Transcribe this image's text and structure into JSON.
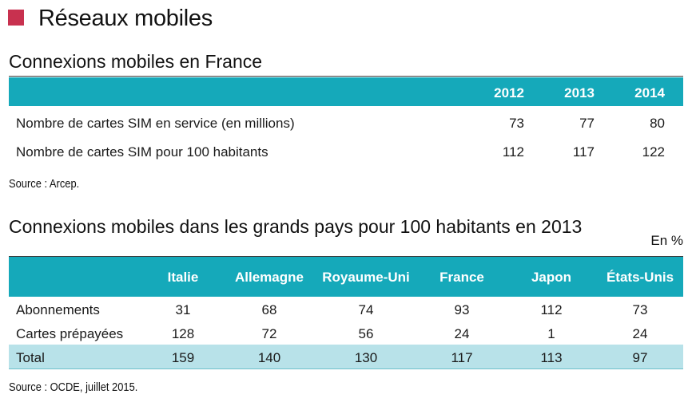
{
  "page_title": "Réseaux mobiles",
  "accent_color": "#c8314f",
  "table_header_color": "#15a9ba",
  "total_row_color": "#b8e2e9",
  "table1": {
    "title": "Connexions mobiles en France",
    "headers": [
      "2012",
      "2013",
      "2014"
    ],
    "rows": [
      {
        "label": "Nombre de cartes SIM en service (en millions)",
        "values": [
          "73",
          "77",
          "80"
        ]
      },
      {
        "label": "Nombre de cartes SIM pour 100 habitants",
        "values": [
          "112",
          "117",
          "122"
        ]
      }
    ],
    "source": "Source : Arcep."
  },
  "table2": {
    "title": "Connexions mobiles dans les grands pays pour 100 habitants en 2013",
    "unit": "En %",
    "headers": [
      "Italie",
      "Allemagne",
      "Royaume-Uni",
      "France",
      "Japon",
      "États-Unis"
    ],
    "rows": [
      {
        "label": "Abonnements",
        "values": [
          "31",
          "68",
          "74",
          "93",
          "112",
          "73"
        ]
      },
      {
        "label": "Cartes prépayées",
        "values": [
          "128",
          "72",
          "56",
          "24",
          "1",
          "24"
        ]
      }
    ],
    "total": {
      "label": "Total",
      "values": [
        "159",
        "140",
        "130",
        "117",
        "113",
        "97"
      ]
    },
    "source": "Source : OCDE, juillet 2015."
  }
}
